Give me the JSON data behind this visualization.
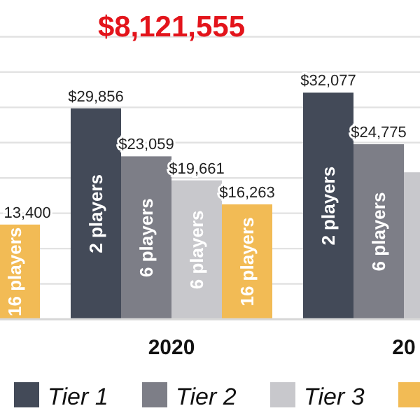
{
  "chart_data": {
    "type": "bar",
    "categories": [
      null,
      "2020",
      "20"
    ],
    "series": [
      {
        "name": "Tier 1",
        "color": "#434a58",
        "values": [
          null,
          29856,
          32077
        ],
        "value_labels": [
          null,
          "$29,856",
          "$32,077"
        ]
      },
      {
        "name": "Tier 2",
        "color": "#7d7e87",
        "values": [
          null,
          23059,
          24775
        ],
        "value_labels": [
          null,
          "$23,059",
          "$24,775"
        ]
      },
      {
        "name": "Tier 3",
        "color": "#c8c8cc",
        "values": [
          null,
          19661,
          20800
        ],
        "value_labels": [
          null,
          "$19,661",
          null
        ]
      },
      {
        "color": "#f2bb55",
        "values": [
          13400,
          16263,
          null
        ],
        "value_labels": [
          "13,400",
          "$16,263",
          null
        ]
      }
    ],
    "title": "$8,121,555",
    "annotations": [
      "16 players",
      "2 players",
      "6 players",
      "6 players",
      "16 players",
      "2 players",
      "6 players"
    ],
    "ylim": [
      0,
      45000
    ],
    "yticks": [
      {
        "value": 0,
        "label": null
      },
      {
        "value": 5000,
        "label": null
      },
      {
        "value": 10000,
        "label": null
      },
      {
        "value": 15000,
        "label": null
      },
      {
        "value": 20000,
        "label": null
      },
      {
        "value": 25000,
        "label": null
      },
      {
        "value": 30000,
        "label": null
      },
      {
        "value": 35000,
        "label": null
      },
      {
        "value": 40000,
        "label": null
      }
    ],
    "tick_labels": "x",
    "grid": "y",
    "legend": "bottom"
  }
}
